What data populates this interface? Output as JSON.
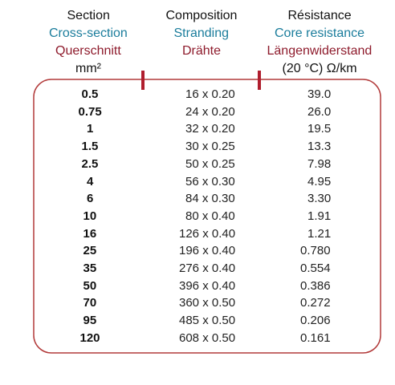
{
  "header": {
    "columns": [
      [
        "Section",
        "Cross-section",
        "Querschnitt",
        "mm²"
      ],
      [
        "Composition",
        "Stranding",
        "Drähte"
      ],
      [
        "Résistance",
        "Core resistance",
        "Längenwiderstand",
        "(20 °C) Ω/km"
      ]
    ]
  },
  "table": {
    "rows": [
      [
        "0.5",
        "16 x 0.20",
        "39.0"
      ],
      [
        "0.75",
        "24 x 0.20",
        "26.0"
      ],
      [
        "1",
        "32 x 0.20",
        "19.5"
      ],
      [
        "1.5",
        "30 x 0.25",
        "13.3"
      ],
      [
        "2.5",
        "50 x 0.25",
        "7.98"
      ],
      [
        "4",
        "56 x 0.30",
        "4.95"
      ],
      [
        "6",
        "84 x 0.30",
        "3.30"
      ],
      [
        "10",
        "80 x 0.40",
        "1.91"
      ],
      [
        "16",
        "126 x 0.40",
        "1.21"
      ],
      [
        "25",
        "196 x 0.40",
        "0.780"
      ],
      [
        "35",
        "276 x 0.40",
        "0.554"
      ],
      [
        "50",
        "396 x 0.40",
        "0.386"
      ],
      [
        "70",
        "360 x 0.50",
        "0.272"
      ],
      [
        "95",
        "485 x 0.50",
        "0.206"
      ],
      [
        "120",
        "608 x 0.50",
        "0.161"
      ]
    ]
  }
}
